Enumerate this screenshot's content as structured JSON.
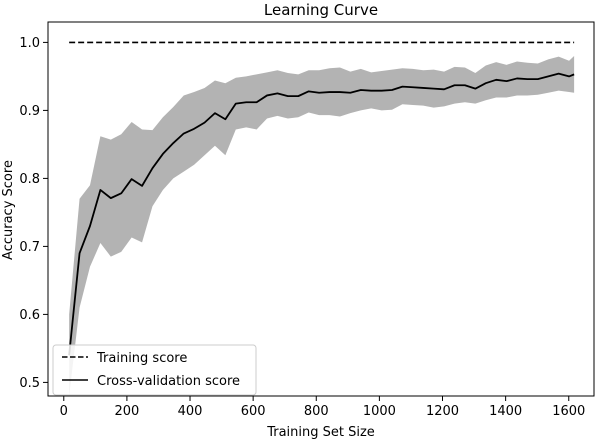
{
  "chart_data": {
    "type": "line",
    "title": "Learning Curve",
    "xlabel": "Training Set Size",
    "ylabel": "Accuracy Score",
    "xlim": [
      -50,
      1680
    ],
    "ylim": [
      0.48,
      1.03
    ],
    "xticks": [
      0,
      200,
      400,
      600,
      800,
      1000,
      1200,
      1400,
      1600
    ],
    "xtick_labels": [
      "0",
      "200",
      "400",
      "600",
      "800",
      "1000",
      "1200",
      "1400",
      "1600"
    ],
    "yticks": [
      0.5,
      0.6,
      0.7,
      0.8,
      0.9,
      1.0
    ],
    "ytick_labels": [
      "0.5",
      "0.6",
      "0.7",
      "0.8",
      "0.9",
      "1.0"
    ],
    "legend_position": "lower-left",
    "series": [
      {
        "name": "Training score",
        "style": "dashed",
        "color": "#000000",
        "x": [
          17,
          1617
        ],
        "y": [
          1.0,
          1.0
        ]
      },
      {
        "name": "Cross-validation score",
        "style": "solid",
        "color": "#000000",
        "band_color": "#b3b3b3",
        "x": [
          17,
          50,
          83,
          116,
          149,
          182,
          215,
          248,
          281,
          314,
          347,
          380,
          413,
          446,
          479,
          512,
          545,
          578,
          611,
          644,
          677,
          710,
          743,
          776,
          809,
          842,
          875,
          908,
          941,
          974,
          1007,
          1040,
          1073,
          1106,
          1139,
          1172,
          1205,
          1238,
          1271,
          1304,
          1337,
          1370,
          1403,
          1436,
          1469,
          1502,
          1535,
          1568,
          1601,
          1617
        ],
        "y": [
          0.54,
          0.69,
          0.73,
          0.783,
          0.771,
          0.778,
          0.799,
          0.789,
          0.815,
          0.836,
          0.852,
          0.866,
          0.873,
          0.882,
          0.896,
          0.887,
          0.91,
          0.912,
          0.912,
          0.922,
          0.925,
          0.921,
          0.921,
          0.928,
          0.926,
          0.927,
          0.927,
          0.926,
          0.93,
          0.929,
          0.929,
          0.93,
          0.935,
          0.934,
          0.933,
          0.932,
          0.931,
          0.937,
          0.937,
          0.932,
          0.94,
          0.945,
          0.943,
          0.947,
          0.946,
          0.946,
          0.95,
          0.954,
          0.95,
          0.953
        ],
        "lower": [
          0.48,
          0.61,
          0.67,
          0.705,
          0.685,
          0.692,
          0.713,
          0.706,
          0.759,
          0.783,
          0.8,
          0.81,
          0.82,
          0.834,
          0.848,
          0.834,
          0.872,
          0.875,
          0.872,
          0.888,
          0.892,
          0.888,
          0.89,
          0.897,
          0.893,
          0.893,
          0.891,
          0.896,
          0.9,
          0.903,
          0.9,
          0.901,
          0.909,
          0.908,
          0.907,
          0.904,
          0.906,
          0.91,
          0.912,
          0.91,
          0.915,
          0.919,
          0.919,
          0.922,
          0.922,
          0.923,
          0.926,
          0.929,
          0.927,
          0.926
        ],
        "upper": [
          0.6,
          0.77,
          0.79,
          0.862,
          0.857,
          0.865,
          0.883,
          0.872,
          0.871,
          0.89,
          0.905,
          0.922,
          0.927,
          0.933,
          0.944,
          0.94,
          0.948,
          0.95,
          0.953,
          0.956,
          0.959,
          0.955,
          0.953,
          0.959,
          0.959,
          0.962,
          0.963,
          0.957,
          0.961,
          0.956,
          0.958,
          0.96,
          0.962,
          0.961,
          0.959,
          0.96,
          0.957,
          0.964,
          0.963,
          0.955,
          0.966,
          0.971,
          0.967,
          0.972,
          0.97,
          0.969,
          0.975,
          0.979,
          0.973,
          0.98
        ]
      }
    ]
  }
}
